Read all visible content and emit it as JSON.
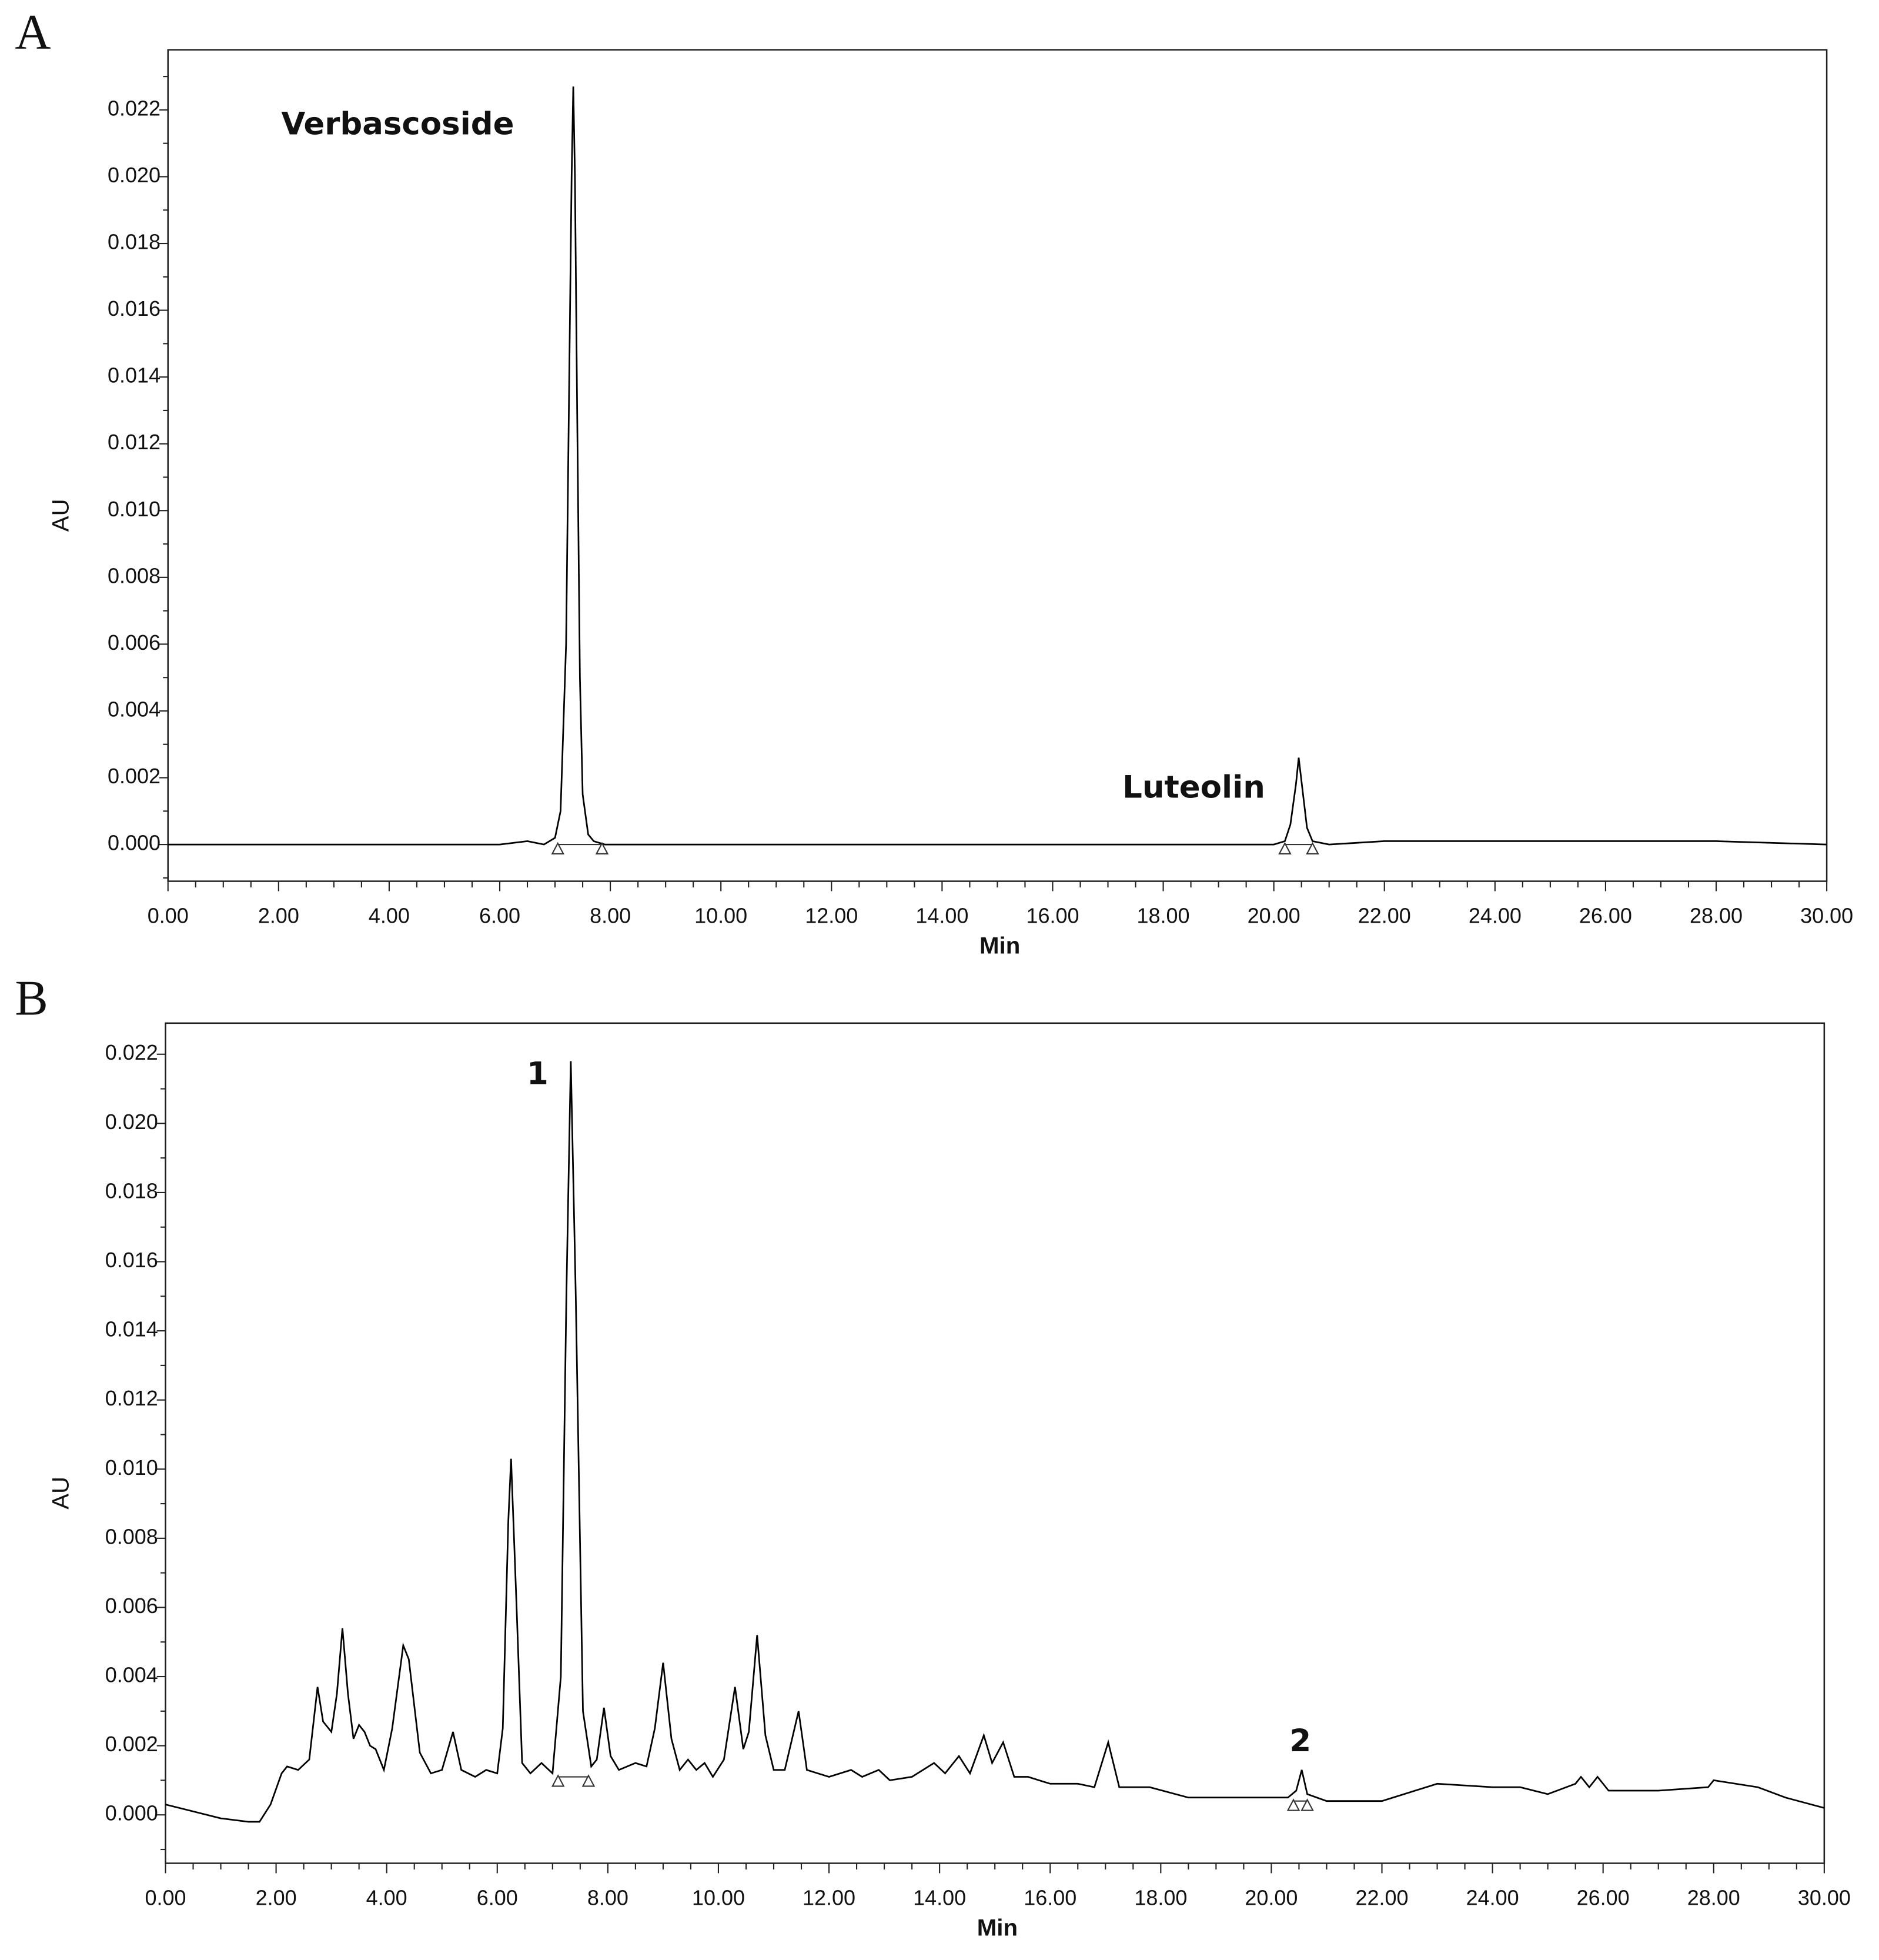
{
  "chart_data": [
    {
      "type": "line",
      "panel_label": "A",
      "xlabel": "Min",
      "ylabel": "AU",
      "annotations": [
        "Verbascoside",
        "Luteolin"
      ],
      "color": "#000000",
      "x": [
        0,
        1,
        2,
        3,
        4,
        5,
        6,
        6.5,
        6.8,
        7.0,
        7.1,
        7.2,
        7.25,
        7.3,
        7.33,
        7.36,
        7.4,
        7.45,
        7.5,
        7.6,
        7.7,
        7.9,
        8.5,
        10,
        12,
        14,
        16,
        18,
        19,
        20,
        20.2,
        20.3,
        20.4,
        20.45,
        20.5,
        20.6,
        20.7,
        21,
        22,
        24,
        25.8,
        26,
        28,
        30
      ],
      "values": [
        0,
        0,
        0,
        0,
        0,
        0,
        0,
        0.0001,
        0,
        0.0002,
        0.001,
        0.006,
        0.013,
        0.02,
        0.0227,
        0.02,
        0.013,
        0.005,
        0.0015,
        0.0003,
        0.0001,
        0,
        0,
        0,
        0,
        0,
        0,
        0,
        0,
        0,
        0.0001,
        0.0006,
        0.0018,
        0.0026,
        0.0019,
        0.0005,
        0.0001,
        0,
        0.0001,
        0.0001,
        0.0001,
        0.0001,
        0.0001,
        0
      ],
      "peak_limits": {
        "x": [
          7.05,
          7.85,
          20.2,
          20.7
        ],
        "y": [
          0,
          0,
          0,
          0
        ]
      },
      "xlim": [
        0,
        30
      ],
      "ylim": [
        -0.0011,
        0.0238
      ],
      "xticks": [
        {
          "value": 0,
          "label": "0.00"
        },
        {
          "value": 2,
          "label": "2.00"
        },
        {
          "value": 4,
          "label": "4.00"
        },
        {
          "value": 6,
          "label": "6.00"
        },
        {
          "value": 8,
          "label": "8.00"
        },
        {
          "value": 10,
          "label": "10.00"
        },
        {
          "value": 12,
          "label": "12.00"
        },
        {
          "value": 14,
          "label": "14.00"
        },
        {
          "value": 16,
          "label": "16.00"
        },
        {
          "value": 18,
          "label": "18.00"
        },
        {
          "value": 20,
          "label": "20.00"
        },
        {
          "value": 22,
          "label": "22.00"
        },
        {
          "value": 24,
          "label": "24.00"
        },
        {
          "value": 26,
          "label": "26.00"
        },
        {
          "value": 28,
          "label": "28.00"
        },
        {
          "value": 30,
          "label": "30.00"
        }
      ],
      "yticks": [
        {
          "value": 0,
          "label": "0.000"
        },
        {
          "value": 0.002,
          "label": "0.002"
        },
        {
          "value": 0.004,
          "label": "0.004"
        },
        {
          "value": 0.006,
          "label": "0.006"
        },
        {
          "value": 0.008,
          "label": "0.008"
        },
        {
          "value": 0.01,
          "label": "0.010"
        },
        {
          "value": 0.012,
          "label": "0.012"
        },
        {
          "value": 0.014,
          "label": "0.014"
        },
        {
          "value": 0.016,
          "label": "0.016"
        },
        {
          "value": 0.018,
          "label": "0.018"
        },
        {
          "value": 0.02,
          "label": "0.020"
        },
        {
          "value": 0.022,
          "label": "0.022"
        }
      ],
      "xminorticks": [
        0.5,
        1,
        1.5,
        2.5,
        3,
        3.5,
        4.5,
        5,
        5.5,
        6.5,
        7,
        7.5,
        8.5,
        9,
        9.5,
        10.5,
        11,
        11.5,
        12.5,
        13,
        13.5,
        14.5,
        15,
        15.5,
        16.5,
        17,
        17.5,
        18.5,
        19,
        19.5,
        20.5,
        21,
        21.5,
        22.5,
        23,
        23.5,
        24.5,
        25,
        25.5,
        26.5,
        27,
        27.5,
        28.5,
        29,
        29.5
      ],
      "yminorticks": [
        -0.001,
        0.001,
        0.003,
        0.005,
        0.007,
        0.009,
        0.011,
        0.013,
        0.015,
        0.017,
        0.019,
        0.021,
        0.023
      ]
    },
    {
      "type": "line",
      "panel_label": "B",
      "xlabel": "Min",
      "ylabel": "AU",
      "annotations": [
        "1",
        "2"
      ],
      "color": "#000000",
      "x": [
        0,
        0.5,
        1,
        1.5,
        1.7,
        1.9,
        2.1,
        2.2,
        2.4,
        2.6,
        2.75,
        2.85,
        3.0,
        3.1,
        3.2,
        3.3,
        3.4,
        3.5,
        3.6,
        3.7,
        3.8,
        3.95,
        4.1,
        4.3,
        4.4,
        4.6,
        4.8,
        5.0,
        5.2,
        5.35,
        5.6,
        5.8,
        6.0,
        6.1,
        6.2,
        6.25,
        6.35,
        6.45,
        6.6,
        6.8,
        7.0,
        7.15,
        7.25,
        7.33,
        7.42,
        7.55,
        7.7,
        7.8,
        7.93,
        8.05,
        8.2,
        8.5,
        8.7,
        8.85,
        9.0,
        9.15,
        9.3,
        9.45,
        9.6,
        9.75,
        9.9,
        10.1,
        10.3,
        10.45,
        10.55,
        10.7,
        10.85,
        11.0,
        11.2,
        11.45,
        11.6,
        11.8,
        12.0,
        12.4,
        12.6,
        12.9,
        13.1,
        13.5,
        13.9,
        14.1,
        14.35,
        14.55,
        14.8,
        14.95,
        15.15,
        15.35,
        15.6,
        16.0,
        16.5,
        16.8,
        17.05,
        17.25,
        17.8,
        18.5,
        19.5,
        20.3,
        20.45,
        20.55,
        20.65,
        21.0,
        22.0,
        23.0,
        24.0,
        24.5,
        25.0,
        25.5,
        25.6,
        25.75,
        25.9,
        26.1,
        27,
        27.9,
        28,
        28.8,
        29.3,
        30
      ],
      "values": [
        0.0003,
        0.0001,
        -0.0001,
        -0.0002,
        -0.0002,
        0.0003,
        0.0012,
        0.0014,
        0.0013,
        0.0016,
        0.0037,
        0.0027,
        0.0024,
        0.0035,
        0.0054,
        0.0035,
        0.0022,
        0.0026,
        0.0024,
        0.002,
        0.0019,
        0.0013,
        0.0025,
        0.0049,
        0.0045,
        0.0018,
        0.0012,
        0.0013,
        0.0024,
        0.0013,
        0.0011,
        0.0013,
        0.0012,
        0.0025,
        0.0085,
        0.0103,
        0.006,
        0.0015,
        0.0012,
        0.0015,
        0.0012,
        0.004,
        0.015,
        0.0218,
        0.015,
        0.003,
        0.0014,
        0.0016,
        0.0031,
        0.0017,
        0.0013,
        0.0015,
        0.0014,
        0.0025,
        0.0044,
        0.0022,
        0.0013,
        0.0016,
        0.0013,
        0.0015,
        0.0011,
        0.0016,
        0.0037,
        0.0019,
        0.0024,
        0.0052,
        0.0023,
        0.0013,
        0.0013,
        0.003,
        0.0013,
        0.0012,
        0.0011,
        0.0013,
        0.0011,
        0.0013,
        0.001,
        0.0011,
        0.0015,
        0.0012,
        0.0017,
        0.0012,
        0.0023,
        0.0015,
        0.0021,
        0.0011,
        0.0011,
        0.0009,
        0.0009,
        0.0008,
        0.0021,
        0.0008,
        0.0008,
        0.0005,
        0.0005,
        0.0005,
        0.0007,
        0.0013,
        0.0006,
        0.0004,
        0.0004,
        0.0009,
        0.0008,
        0.0008,
        0.0006,
        0.0009,
        0.0011,
        0.0008,
        0.0011,
        0.0007,
        0.0007,
        0.0008,
        0.001,
        0.0008,
        0.0005,
        0.0002
      ],
      "peak_limits": {
        "x": [
          7.1,
          7.65,
          20.4,
          20.65
        ],
        "y": [
          0.0011,
          0.0011,
          0.0004,
          0.0004
        ]
      },
      "xlim": [
        0,
        30
      ],
      "ylim": [
        -0.0014,
        0.0229
      ],
      "xticks": [
        {
          "value": 0,
          "label": "0.00"
        },
        {
          "value": 2,
          "label": "2.00"
        },
        {
          "value": 4,
          "label": "4.00"
        },
        {
          "value": 6,
          "label": "6.00"
        },
        {
          "value": 8,
          "label": "8.00"
        },
        {
          "value": 10,
          "label": "10.00"
        },
        {
          "value": 12,
          "label": "12.00"
        },
        {
          "value": 14,
          "label": "14.00"
        },
        {
          "value": 16,
          "label": "16.00"
        },
        {
          "value": 18,
          "label": "18.00"
        },
        {
          "value": 20,
          "label": "20.00"
        },
        {
          "value": 22,
          "label": "22.00"
        },
        {
          "value": 24,
          "label": "24.00"
        },
        {
          "value": 26,
          "label": "26.00"
        },
        {
          "value": 28,
          "label": "28.00"
        },
        {
          "value": 30,
          "label": "30.00"
        }
      ],
      "yticks": [
        {
          "value": 0,
          "label": "0.000"
        },
        {
          "value": 0.002,
          "label": "0.002"
        },
        {
          "value": 0.004,
          "label": "0.004"
        },
        {
          "value": 0.006,
          "label": "0.006"
        },
        {
          "value": 0.008,
          "label": "0.008"
        },
        {
          "value": 0.01,
          "label": "0.010"
        },
        {
          "value": 0.012,
          "label": "0.012"
        },
        {
          "value": 0.014,
          "label": "0.014"
        },
        {
          "value": 0.016,
          "label": "0.016"
        },
        {
          "value": 0.018,
          "label": "0.018"
        },
        {
          "value": 0.02,
          "label": "0.020"
        },
        {
          "value": 0.022,
          "label": "0.022"
        }
      ],
      "xminorticks": [
        0.5,
        1,
        1.5,
        2.5,
        3,
        3.5,
        4.5,
        5,
        5.5,
        6.5,
        7,
        7.5,
        8.5,
        9,
        9.5,
        10.5,
        11,
        11.5,
        12.5,
        13,
        13.5,
        14.5,
        15,
        15.5,
        16.5,
        17,
        17.5,
        18.5,
        19,
        19.5,
        20.5,
        21,
        21.5,
        22.5,
        23,
        23.5,
        24.5,
        25,
        25.5,
        26.5,
        27,
        27.5,
        28.5,
        29,
        29.5
      ],
      "yminorticks": [
        -0.001,
        0.001,
        0.003,
        0.005,
        0.007,
        0.009,
        0.011,
        0.013,
        0.015,
        0.017,
        0.019,
        0.021
      ]
    }
  ]
}
